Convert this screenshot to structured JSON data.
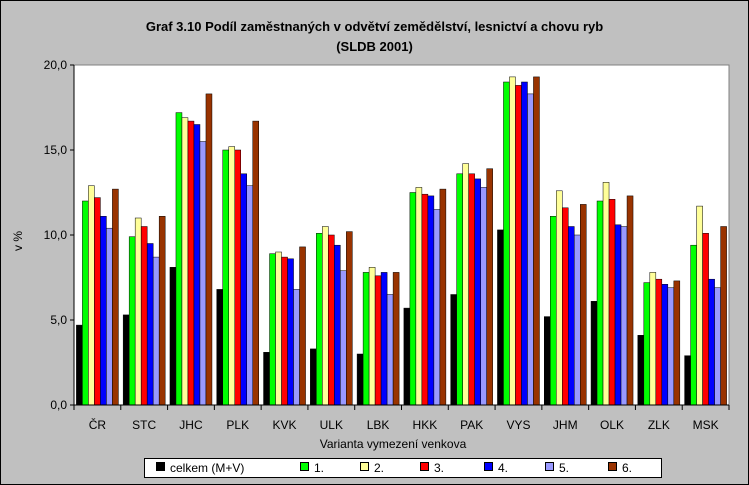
{
  "chart_data": {
    "type": "bar",
    "title_lines": [
      "Graf 3.10 Podíl zaměstnaných v odvětví zemědělství, lesnictví a chovu ryb",
      "(SLDB 2001)"
    ],
    "xlabel": "Varianta vymezení venkova",
    "ylabel": "v %",
    "ylim": [
      0,
      20
    ],
    "yticks": [
      "0,0",
      "5,0",
      "10,0",
      "15,0",
      "20,0"
    ],
    "grid": false,
    "legend_position": "bottom",
    "categories": [
      "ČR",
      "STC",
      "JHC",
      "PLK",
      "KVK",
      "ULK",
      "LBK",
      "HKK",
      "PAK",
      "VYS",
      "JHM",
      "OLK",
      "ZLK",
      "MSK"
    ],
    "series": [
      {
        "name": "celkem (M+V)",
        "color": "#000000",
        "values": [
          4.7,
          5.3,
          8.1,
          6.8,
          3.1,
          3.3,
          3.0,
          5.7,
          6.5,
          10.3,
          5.2,
          6.1,
          4.1,
          2.9
        ]
      },
      {
        "name": "1.",
        "color": "#00ff00",
        "values": [
          12.0,
          9.9,
          17.2,
          15.0,
          8.9,
          10.1,
          7.8,
          12.5,
          13.6,
          19.0,
          11.1,
          12.0,
          7.2,
          9.4
        ]
      },
      {
        "name": "2.",
        "color": "#ffff99",
        "values": [
          12.9,
          11.0,
          16.9,
          15.2,
          9.0,
          10.5,
          8.1,
          12.8,
          14.2,
          19.3,
          12.6,
          13.1,
          7.8,
          11.7
        ]
      },
      {
        "name": "3.",
        "color": "#ff0000",
        "values": [
          12.2,
          10.5,
          16.7,
          15.0,
          8.7,
          10.0,
          7.6,
          12.4,
          13.6,
          18.8,
          11.6,
          12.1,
          7.4,
          10.1
        ]
      },
      {
        "name": "4.",
        "color": "#0000ff",
        "values": [
          11.1,
          9.5,
          16.5,
          13.6,
          8.6,
          9.4,
          7.8,
          12.3,
          13.3,
          19.0,
          10.5,
          10.6,
          7.1,
          7.4
        ]
      },
      {
        "name": "5.",
        "color": "#9999ff",
        "values": [
          10.4,
          8.7,
          15.5,
          12.9,
          6.8,
          7.9,
          6.5,
          11.5,
          12.8,
          18.3,
          10.0,
          10.5,
          6.9,
          6.9
        ]
      },
      {
        "name": "6.",
        "color": "#993300",
        "values": [
          12.7,
          11.1,
          18.3,
          16.7,
          9.3,
          10.2,
          7.8,
          12.7,
          13.9,
          19.3,
          11.8,
          12.3,
          7.3,
          10.5
        ]
      }
    ]
  }
}
